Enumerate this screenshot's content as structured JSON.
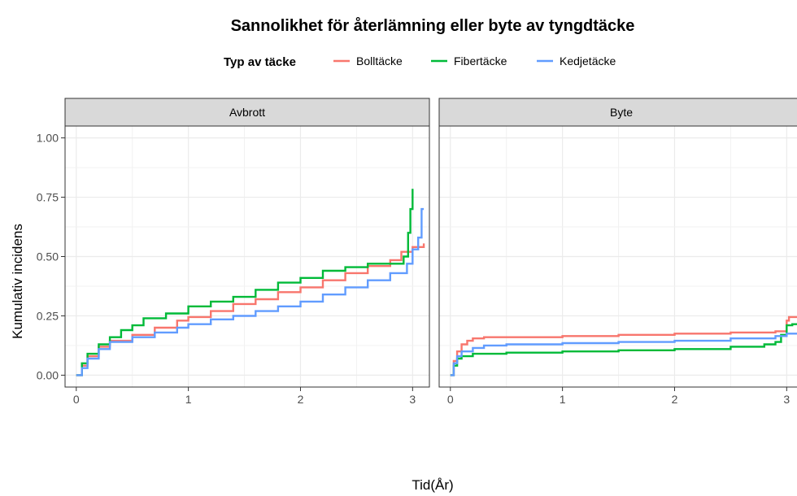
{
  "chart_data": {
    "type": "line",
    "title": "Sannolikhet för återlämning eller byte av tyngdtäcke",
    "xlabel": "Tid(År)",
    "ylabel": "Kumulativ incidens",
    "legend": {
      "title": "Typ av täcke",
      "position": "top",
      "entries": [
        {
          "label": "Bolltäcke",
          "color": "#F8766D"
        },
        {
          "label": "Fibertäcke",
          "color": "#00BA38"
        },
        {
          "label": "Kedjetäcke",
          "color": "#619CFF"
        }
      ]
    },
    "grid": true,
    "xlim": [
      -0.1,
      3.15
    ],
    "ylim": [
      -0.05,
      1.05
    ],
    "x_ticks": [
      "0",
      "1",
      "2",
      "3"
    ],
    "y_ticks": [
      "0.00",
      "0.25",
      "0.50",
      "0.75",
      "1.00"
    ],
    "panels": [
      {
        "label": "Avbrott",
        "series": [
          {
            "name": "Bolltäcke",
            "color": "#F8766D",
            "points": [
              [
                0,
                0
              ],
              [
                0.05,
                0.04
              ],
              [
                0.1,
                0.08
              ],
              [
                0.2,
                0.12
              ],
              [
                0.3,
                0.145
              ],
              [
                0.5,
                0.17
              ],
              [
                0.7,
                0.2
              ],
              [
                0.9,
                0.23
              ],
              [
                1.0,
                0.245
              ],
              [
                1.2,
                0.27
              ],
              [
                1.4,
                0.3
              ],
              [
                1.6,
                0.32
              ],
              [
                1.8,
                0.35
              ],
              [
                2.0,
                0.37
              ],
              [
                2.2,
                0.4
              ],
              [
                2.4,
                0.43
              ],
              [
                2.6,
                0.46
              ],
              [
                2.8,
                0.485
              ],
              [
                2.9,
                0.52
              ],
              [
                3.0,
                0.54
              ],
              [
                3.1,
                0.555
              ]
            ]
          },
          {
            "name": "Fibertäcke",
            "color": "#00BA38",
            "points": [
              [
                0,
                0
              ],
              [
                0.05,
                0.05
              ],
              [
                0.1,
                0.09
              ],
              [
                0.2,
                0.13
              ],
              [
                0.3,
                0.16
              ],
              [
                0.4,
                0.19
              ],
              [
                0.5,
                0.21
              ],
              [
                0.6,
                0.24
              ],
              [
                0.8,
                0.26
              ],
              [
                1.0,
                0.29
              ],
              [
                1.2,
                0.31
              ],
              [
                1.4,
                0.33
              ],
              [
                1.6,
                0.36
              ],
              [
                1.8,
                0.39
              ],
              [
                2.0,
                0.41
              ],
              [
                2.2,
                0.44
              ],
              [
                2.4,
                0.455
              ],
              [
                2.6,
                0.47
              ],
              [
                2.85,
                0.47
              ],
              [
                2.92,
                0.5
              ],
              [
                2.96,
                0.6
              ],
              [
                2.98,
                0.7
              ],
              [
                3.0,
                0.785
              ]
            ]
          },
          {
            "name": "Kedjetäcke",
            "color": "#619CFF",
            "points": [
              [
                0,
                0
              ],
              [
                0.05,
                0.03
              ],
              [
                0.1,
                0.07
              ],
              [
                0.2,
                0.11
              ],
              [
                0.3,
                0.14
              ],
              [
                0.5,
                0.16
              ],
              [
                0.7,
                0.18
              ],
              [
                0.9,
                0.2
              ],
              [
                1.0,
                0.215
              ],
              [
                1.2,
                0.235
              ],
              [
                1.4,
                0.25
              ],
              [
                1.6,
                0.27
              ],
              [
                1.8,
                0.29
              ],
              [
                2.0,
                0.31
              ],
              [
                2.2,
                0.34
              ],
              [
                2.4,
                0.37
              ],
              [
                2.6,
                0.4
              ],
              [
                2.8,
                0.43
              ],
              [
                2.95,
                0.47
              ],
              [
                3.0,
                0.53
              ],
              [
                3.05,
                0.58
              ],
              [
                3.08,
                0.7
              ],
              [
                3.1,
                0.7
              ]
            ]
          }
        ]
      },
      {
        "label": "Byte",
        "series": [
          {
            "name": "Bolltäcke",
            "color": "#F8766D",
            "points": [
              [
                0,
                0
              ],
              [
                0.03,
                0.06
              ],
              [
                0.06,
                0.1
              ],
              [
                0.1,
                0.13
              ],
              [
                0.15,
                0.145
              ],
              [
                0.2,
                0.155
              ],
              [
                0.3,
                0.16
              ],
              [
                0.5,
                0.16
              ],
              [
                1.0,
                0.165
              ],
              [
                1.5,
                0.17
              ],
              [
                2.0,
                0.175
              ],
              [
                2.5,
                0.18
              ],
              [
                2.9,
                0.185
              ],
              [
                3.0,
                0.23
              ],
              [
                3.02,
                0.245
              ],
              [
                3.1,
                0.245
              ]
            ]
          },
          {
            "name": "Fibertäcke",
            "color": "#00BA38",
            "points": [
              [
                0,
                0
              ],
              [
                0.03,
                0.04
              ],
              [
                0.06,
                0.07
              ],
              [
                0.1,
                0.08
              ],
              [
                0.2,
                0.09
              ],
              [
                0.5,
                0.095
              ],
              [
                1.0,
                0.1
              ],
              [
                1.5,
                0.105
              ],
              [
                2.0,
                0.11
              ],
              [
                2.5,
                0.12
              ],
              [
                2.8,
                0.13
              ],
              [
                2.9,
                0.14
              ],
              [
                2.95,
                0.17
              ],
              [
                3.0,
                0.21
              ],
              [
                3.05,
                0.215
              ],
              [
                3.1,
                0.22
              ]
            ]
          },
          {
            "name": "Kedjetäcke",
            "color": "#619CFF",
            "points": [
              [
                0,
                0
              ],
              [
                0.03,
                0.05
              ],
              [
                0.06,
                0.08
              ],
              [
                0.1,
                0.1
              ],
              [
                0.2,
                0.115
              ],
              [
                0.3,
                0.125
              ],
              [
                0.5,
                0.13
              ],
              [
                1.0,
                0.135
              ],
              [
                1.5,
                0.14
              ],
              [
                2.0,
                0.145
              ],
              [
                2.5,
                0.155
              ],
              [
                2.9,
                0.165
              ],
              [
                3.0,
                0.175
              ],
              [
                3.1,
                0.18
              ]
            ]
          }
        ]
      }
    ]
  }
}
